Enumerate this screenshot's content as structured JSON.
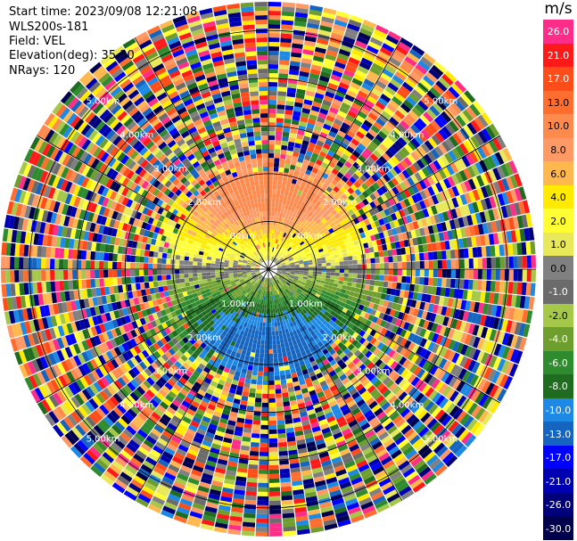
{
  "header": {
    "start_time": "Start time: 2023/09/08 12:21:08",
    "site": "WLS200s-181",
    "field": "Field: VEL",
    "elevation": "Elevation(deg): 35.30",
    "nrays": "NRays: 120"
  },
  "colorbar": {
    "unit": "m/s",
    "ticks": [
      "26.0",
      "21.0",
      "17.0",
      "13.0",
      "10.0",
      "8.0",
      "6.0",
      "4.0",
      "2.0",
      "1.0",
      "0.0",
      "-1.0",
      "-2.0",
      "-4.0",
      "-6.0",
      "-8.0",
      "-10.0",
      "-13.0",
      "-17.0",
      "-21.0",
      "-26.0",
      "-30.0"
    ],
    "colors": [
      "#ff2d8a",
      "#ff1a1a",
      "#ff4d1a",
      "#ff6e2e",
      "#ff8a4d",
      "#ff9966",
      "#ffb84d",
      "#ffea00",
      "#ffff33",
      "#e8e85a",
      "#808080",
      "#6b6b6b",
      "#a5c74a",
      "#6e9e2e",
      "#2e8b2e",
      "#1f6b1f",
      "#1e88e5",
      "#1565c0",
      "#0000ff",
      "#0000b3",
      "#00007a",
      "#00004d"
    ]
  },
  "chart_data": {
    "type": "heatmap",
    "projection": "ppi-polar",
    "field": "VEL",
    "unit": "m/s",
    "nrays": 120,
    "range_rings_km": [
      1.0,
      2.0,
      3.0,
      4.0,
      5.0
    ],
    "range_ring_labels": [
      "1.00km",
      "2.00km",
      "3.00km",
      "4.00km",
      "5.00km"
    ],
    "vmin": -30.0,
    "vmax": 26.0
  }
}
